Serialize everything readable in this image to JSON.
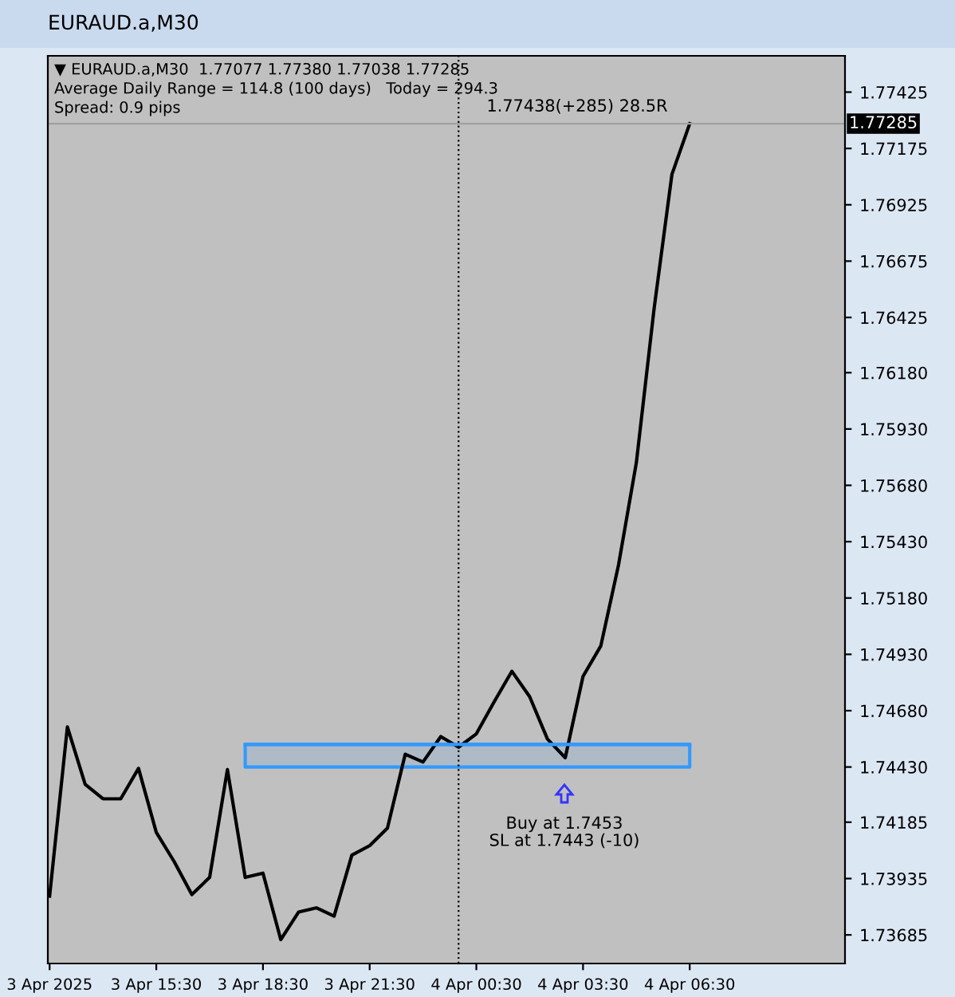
{
  "chart_data": {
    "type": "line",
    "title": "EURAUD.a,M30",
    "annotations": [
      "▼ EURAUD.a,M30  1.77077 1.77380 1.77038 1.77285",
      "Average Daily Range = 114.8 (100 days)   Today = 294.3",
      "Spread: 0.9 pips",
      "1.77438(+285) 28.5R",
      "Buy at 1.7453\nSL at 1.7443 (-10)"
    ],
    "series": [
      {
        "color": "#000000",
        "x": [
          "2025-04-03T12:30",
          "2025-04-03T13:00",
          "2025-04-03T13:30",
          "2025-04-03T14:00",
          "2025-04-03T14:30",
          "2025-04-03T15:00",
          "2025-04-03T15:30",
          "2025-04-03T16:00",
          "2025-04-03T16:30",
          "2025-04-03T17:00",
          "2025-04-03T17:30",
          "2025-04-03T18:00",
          "2025-04-03T18:30",
          "2025-04-03T19:00",
          "2025-04-03T19:30",
          "2025-04-03T20:00",
          "2025-04-03T20:30",
          "2025-04-03T21:00",
          "2025-04-03T21:30",
          "2025-04-03T22:00",
          "2025-04-03T22:30",
          "2025-04-03T23:00",
          "2025-04-03T23:30",
          "2025-04-04T00:00",
          "2025-04-04T00:30",
          "2025-04-04T01:00",
          "2025-04-04T01:30",
          "2025-04-04T02:00",
          "2025-04-04T02:30",
          "2025-04-04T03:00",
          "2025-04-04T03:30",
          "2025-04-04T04:00",
          "2025-04-04T04:30",
          "2025-04-04T05:00",
          "2025-04-04T05:30",
          "2025-04-04T06:00",
          "2025-04-04T06:30"
        ],
        "values": [
          1.73857,
          1.74608,
          1.74353,
          1.74289,
          1.74289,
          1.74424,
          1.7414,
          1.74011,
          1.73864,
          1.7394,
          1.74419,
          1.7394,
          1.73959,
          1.73664,
          1.73786,
          1.73805,
          1.73768,
          1.74039,
          1.74081,
          1.74159,
          1.74487,
          1.74452,
          1.74565,
          1.74518,
          1.74577,
          1.74719,
          1.74855,
          1.74742,
          1.74554,
          1.74471,
          1.74832,
          1.74967,
          1.75328,
          1.75781,
          1.76466,
          1.7706,
          1.77285
        ]
      },
      {
        "color": "#3399ff",
        "x": [
          "2025-04-03T18:00",
          "2025-04-04T06:30"
        ],
        "values": [
          1.7453,
          1.7453
        ],
        "lower": [
          1.7443,
          1.7443
        ],
        "upper": [
          1.7453,
          1.7453
        ]
      }
    ],
    "ref_lines": [
      {
        "axis": "y",
        "value": 1.77285,
        "label": "1.77285",
        "color": "#a0a0a0",
        "line_style": "solid"
      },
      {
        "axis": "x",
        "value": "2025-04-04T00:00",
        "color": "#000000",
        "line_style": "dotted"
      }
    ],
    "xlim": [
      "2025-04-03T12:27",
      "2025-04-04T10:52"
    ],
    "xticks": [
      {
        "value": "2025-04-03T12:30",
        "label": "3 Apr 2025"
      },
      {
        "value": "2025-04-03T15:30",
        "label": "3 Apr 15:30"
      },
      {
        "value": "2025-04-03T18:30",
        "label": "3 Apr 18:30"
      },
      {
        "value": "2025-04-03T21:30",
        "label": "3 Apr 21:30"
      },
      {
        "value": "2025-04-04T00:30",
        "label": "4 Apr 00:30"
      },
      {
        "value": "2025-04-04T03:30",
        "label": "4 Apr 03:30"
      },
      {
        "value": "2025-04-04T06:30",
        "label": "4 Apr 06:30"
      }
    ],
    "ylim": [
      1.73558,
      1.77586
    ],
    "yticks": [
      {
        "value": 1.77425,
        "label": "1.77425"
      },
      {
        "value": 1.77175,
        "label": "1.77175"
      },
      {
        "value": 1.76925,
        "label": "1.76925"
      },
      {
        "value": 1.76675,
        "label": "1.76675"
      },
      {
        "value": 1.76425,
        "label": "1.76425"
      },
      {
        "value": 1.7618,
        "label": "1.76180"
      },
      {
        "value": 1.7593,
        "label": "1.75930"
      },
      {
        "value": 1.7568,
        "label": "1.75680"
      },
      {
        "value": 1.7543,
        "label": "1.75430"
      },
      {
        "value": 1.7518,
        "label": "1.75180"
      },
      {
        "value": 1.7493,
        "label": "1.74930"
      },
      {
        "value": 1.7468,
        "label": "1.74680"
      },
      {
        "value": 1.7443,
        "label": "1.74430"
      },
      {
        "value": 1.74185,
        "label": "1.74185"
      },
      {
        "value": 1.73935,
        "label": "1.73935"
      },
      {
        "value": 1.73685,
        "label": "1.73685"
      }
    ],
    "grid": false,
    "legend": false,
    "marker": "none",
    "line_style": "solid"
  }
}
